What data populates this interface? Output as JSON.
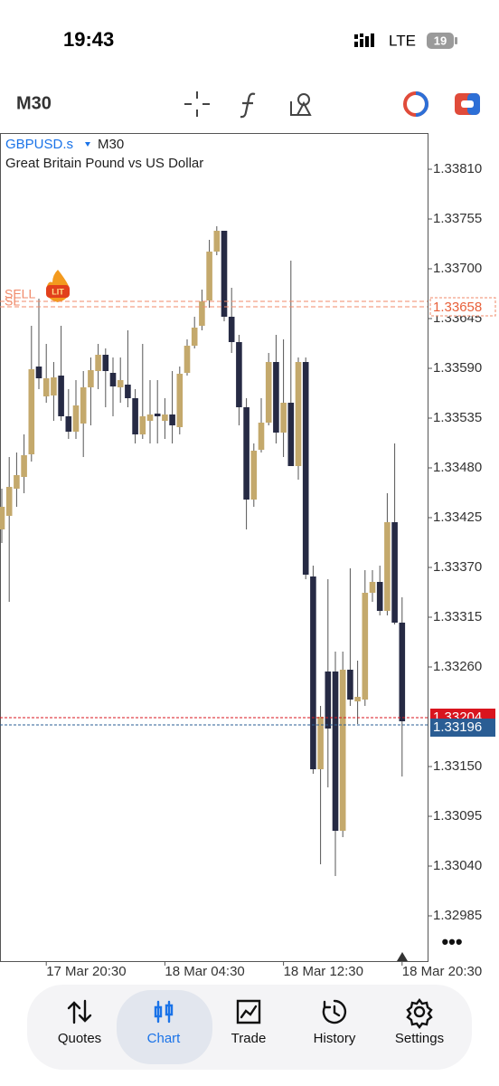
{
  "status_bar": {
    "time": "19:43",
    "network": "LTE",
    "battery": "19"
  },
  "toolbar": {
    "timeframe": "M30"
  },
  "chart_data": {
    "type": "candlestick",
    "symbol": "GBPUSD.s",
    "timeframe": "M30",
    "description": "Great Britain Pound vs US Dollar",
    "categories": [
      null,
      null,
      null,
      null,
      null,
      null,
      "17 Mar 20:30",
      null,
      null,
      null,
      null,
      null,
      null,
      null,
      null,
      null,
      null,
      null,
      null,
      null,
      null,
      null,
      "18 Mar 04:30",
      null,
      null,
      null,
      null,
      null,
      null,
      null,
      null,
      null,
      null,
      null,
      null,
      null,
      null,
      null,
      "18 Mar 12:30",
      null,
      null,
      null,
      null,
      null,
      null,
      null,
      null,
      null,
      null,
      null,
      null,
      null,
      null,
      null,
      "18 Mar 20:30"
    ],
    "open": [
      1.33412,
      1.33427,
      1.33457,
      1.3347,
      1.33495,
      1.33592,
      1.33559,
      1.3356,
      1.33582,
      1.33537,
      1.3352,
      1.33529,
      1.33569,
      1.33587,
      1.33605,
      1.33585,
      1.33569,
      1.33572,
      1.33557,
      1.33517,
      1.33532,
      1.3354,
      1.33532,
      1.33539,
      1.33525,
      1.33585,
      1.33615,
      1.33637,
      1.33665,
      1.33719,
      1.33742,
      1.33647,
      1.33619,
      1.33547,
      1.33445,
      1.335,
      1.3353,
      1.33597,
      1.33519,
      1.33552,
      1.33482,
      1.33597,
      1.3336,
      1.33147,
      1.33255,
      1.33255,
      1.33079,
      1.33257,
      1.33222,
      1.33224,
      1.33342,
      1.33354,
      1.33322,
      1.3342,
      1.33309
    ],
    "high": [
      1.33457,
      1.33492,
      1.33497,
      1.33517,
      1.33637,
      1.33667,
      1.33617,
      1.33597,
      1.33637,
      1.33567,
      1.33577,
      1.33587,
      1.33602,
      1.33617,
      1.33612,
      1.33602,
      1.33602,
      1.33632,
      1.33567,
      1.33617,
      1.33577,
      1.33577,
      1.33557,
      1.33587,
      1.33592,
      1.33622,
      1.33647,
      1.33677,
      1.33732,
      1.33747,
      1.33742,
      1.33679,
      1.33627,
      1.33557,
      1.33507,
      1.33557,
      1.33607,
      1.33627,
      1.33622,
      1.33709,
      1.33602,
      1.33602,
      1.33372,
      1.33217,
      1.33357,
      1.33277,
      1.33277,
      1.33369,
      1.33267,
      1.33367,
      1.33367,
      1.33372,
      1.33452,
      1.33507,
      1.33337
    ],
    "low": [
      1.33397,
      1.33332,
      1.33437,
      1.33452,
      1.33487,
      1.33567,
      1.33552,
      1.33532,
      1.33532,
      1.33512,
      1.33512,
      1.33492,
      1.33527,
      1.33567,
      1.33547,
      1.33537,
      1.33552,
      1.33547,
      1.33507,
      1.33512,
      1.33507,
      1.33507,
      1.33512,
      1.33507,
      1.33517,
      1.33582,
      1.33612,
      1.33632,
      1.33657,
      1.33715,
      1.33642,
      1.33607,
      1.33527,
      1.33412,
      1.33437,
      1.33497,
      1.33527,
      1.33507,
      1.33492,
      1.33482,
      1.33467,
      1.33357,
      1.33142,
      1.33042,
      1.33127,
      1.33029,
      1.33072,
      1.33217,
      1.33197,
      1.33217,
      1.33332,
      1.33317,
      1.33317,
      1.33307,
      1.33139
    ],
    "close": [
      1.33437,
      1.33459,
      1.33472,
      1.33494,
      1.33589,
      1.33579,
      1.33579,
      1.3358,
      1.33537,
      1.3352,
      1.33549,
      1.33569,
      1.33588,
      1.33605,
      1.33587,
      1.3357,
      1.33577,
      1.33557,
      1.33517,
      1.33537,
      1.33539,
      1.33537,
      1.33539,
      1.33527,
      1.33584,
      1.33615,
      1.33635,
      1.33664,
      1.33719,
      1.33742,
      1.33647,
      1.33619,
      1.33547,
      1.33445,
      1.33499,
      1.3353,
      1.33597,
      1.33519,
      1.33552,
      1.33482,
      1.33597,
      1.33362,
      1.33147,
      1.33205,
      1.33192,
      1.33079,
      1.33257,
      1.33224,
      1.33227,
      1.33342,
      1.33354,
      1.33322,
      1.3342,
      1.33309,
      1.332
    ],
    "up_color": "#c4a96c",
    "down_color": "#262a44",
    "ylim": [
      1.32935,
      1.33849
    ],
    "yticks": [
      {
        "value": 1.3381,
        "label": "1.33810"
      },
      1.33755,
      {
        "value": 1.337,
        "label": "1.33700"
      },
      1.33645,
      {
        "value": 1.3359,
        "label": "1.33590"
      },
      1.33535,
      {
        "value": 1.3348,
        "label": "1.33480"
      },
      1.33425,
      {
        "value": 1.3337,
        "label": "1.33370"
      },
      1.33315,
      {
        "value": 1.3326,
        "label": "1.33260"
      },
      {
        "value": 1.3315,
        "label": "1.33150"
      },
      1.33095,
      {
        "value": 1.3304,
        "label": "1.33040"
      },
      1.32985
    ],
    "order_lines": [
      {
        "label": "SELL",
        "value": 1.33664,
        "color": "#f08a6a"
      },
      {
        "label": "SL",
        "value": 1.33658,
        "color": "#f08a6a"
      }
    ],
    "price_lines": [
      {
        "value": 1.33204,
        "color": "#d9141e"
      },
      {
        "value": 1.33196,
        "color": "#2a5d94"
      }
    ]
  },
  "nav": [
    "Quotes",
    "Chart",
    "Trade",
    "History",
    "Settings"
  ]
}
